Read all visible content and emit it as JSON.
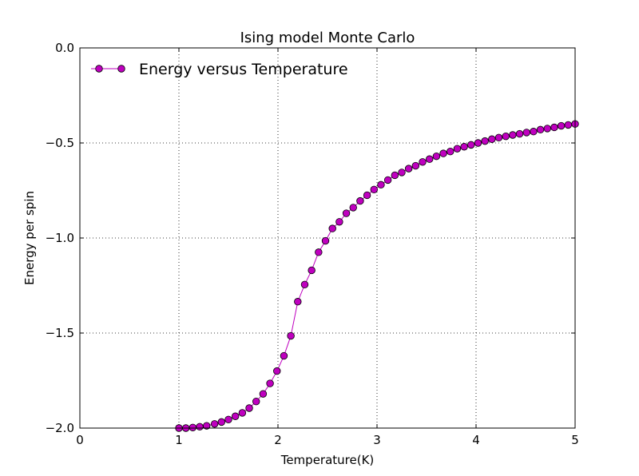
{
  "chart_data": {
    "type": "line",
    "title": "Ising model Monte Carlo",
    "xlabel": "Temperature(K)",
    "ylabel": "Energy per spin",
    "xlim": [
      0,
      5
    ],
    "ylim": [
      -2.0,
      0.0
    ],
    "xticks": [
      0,
      1,
      2,
      3,
      4,
      5
    ],
    "xtick_labels": [
      "0",
      "1",
      "2",
      "3",
      "4",
      "5"
    ],
    "yticks": [
      0.0,
      -0.5,
      -1.0,
      -1.5,
      -2.0
    ],
    "ytick_labels": [
      "0.0",
      "−0.5",
      "−1.0",
      "−1.5",
      "−2.0"
    ],
    "grid": true,
    "legend_position": "top-left",
    "series": [
      {
        "name": "Energy versus Temperature",
        "color": "#bf00bf",
        "marker": "circle",
        "x": [
          1.0,
          1.07,
          1.14,
          1.21,
          1.28,
          1.36,
          1.43,
          1.5,
          1.57,
          1.64,
          1.71,
          1.78,
          1.85,
          1.92,
          1.99,
          2.06,
          2.13,
          2.2,
          2.27,
          2.34,
          2.41,
          2.48,
          2.55,
          2.62,
          2.69,
          2.76,
          2.83,
          2.9,
          2.97,
          3.04,
          3.11,
          3.18,
          3.25,
          3.32,
          3.39,
          3.46,
          3.53,
          3.6,
          3.67,
          3.74,
          3.81,
          3.88,
          3.95,
          4.02,
          4.09,
          4.16,
          4.23,
          4.3,
          4.37,
          4.44,
          4.51,
          4.58,
          4.65,
          4.72,
          4.79,
          4.86,
          4.93,
          5.0
        ],
        "y": [
          -2.0,
          -2.0,
          -1.997,
          -1.993,
          -1.988,
          -1.978,
          -1.968,
          -1.955,
          -1.938,
          -1.92,
          -1.895,
          -1.86,
          -1.82,
          -1.765,
          -1.7,
          -1.62,
          -1.515,
          -1.335,
          -1.245,
          -1.17,
          -1.075,
          -1.015,
          -0.95,
          -0.915,
          -0.87,
          -0.84,
          -0.805,
          -0.775,
          -0.745,
          -0.72,
          -0.695,
          -0.67,
          -0.655,
          -0.635,
          -0.62,
          -0.6,
          -0.585,
          -0.57,
          -0.555,
          -0.545,
          -0.53,
          -0.52,
          -0.51,
          -0.5,
          -0.49,
          -0.48,
          -0.472,
          -0.465,
          -0.458,
          -0.452,
          -0.445,
          -0.44,
          -0.43,
          -0.424,
          -0.418,
          -0.41,
          -0.405,
          -0.4
        ]
      }
    ]
  }
}
